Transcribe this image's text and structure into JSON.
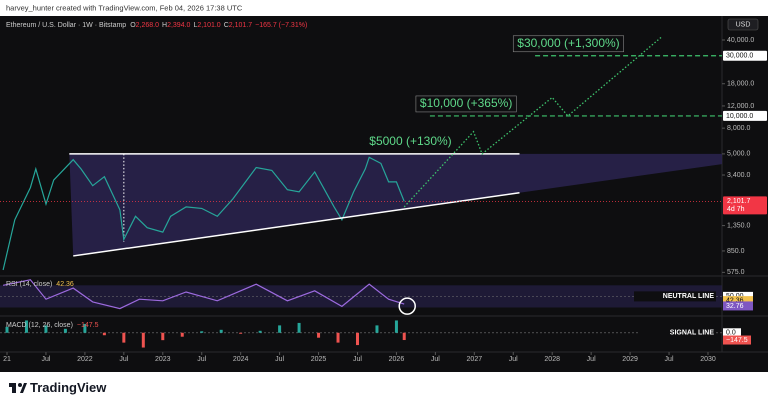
{
  "header": "harvey_hunter created with TradingView.com, Feb 04, 2026 17:38 UTC",
  "footer": "TradingView",
  "chart_data": [
    {
      "type": "line",
      "title": "Ethereum / U.S. Dollar · 1W · Bitstamp",
      "ohlc": [
        {
          "key": "O",
          "value": "2,268.0"
        },
        {
          "key": "H",
          "value": "2,394.0"
        },
        {
          "key": "L",
          "value": "2,101.0"
        },
        {
          "key": "C",
          "value": "2,101.7"
        }
      ],
      "change": "−165.7 (−7.31%)",
      "currency": "USD",
      "log_scale": true,
      "grid": false,
      "color": "#26a69a",
      "x": [
        2020.95,
        2021.1,
        2021.3,
        2021.37,
        2021.5,
        2021.6,
        2021.85,
        2021.95,
        2022.1,
        2022.25,
        2022.45,
        2022.5,
        2022.65,
        2022.8,
        2023.0,
        2023.1,
        2023.3,
        2023.5,
        2023.7,
        2023.9,
        2024.2,
        2024.4,
        2024.6,
        2024.75,
        2024.95,
        2025.2,
        2025.3,
        2025.45,
        2025.6,
        2025.65,
        2025.8,
        2025.9,
        2026.0,
        2026.1
      ],
      "values": [
        600,
        1500,
        2700,
        3800,
        2000,
        3100,
        4500,
        3800,
        2800,
        3300,
        1800,
        1050,
        1600,
        1300,
        1200,
        1600,
        1900,
        1850,
        1600,
        2200,
        3900,
        3700,
        2600,
        2500,
        3600,
        1900,
        1500,
        2500,
        3800,
        4700,
        4200,
        3000,
        3000,
        2101.7
      ],
      "xlim": [
        2020.91,
        2030.18
      ],
      "xticks": [
        {
          "value": 2021,
          "label": "21"
        },
        {
          "value": 2021.5,
          "label": "Jul"
        },
        2022,
        {
          "value": 2022.5,
          "label": "Jul"
        },
        2023,
        {
          "value": 2023.5,
          "label": "Jul"
        },
        2024,
        {
          "value": 2024.5,
          "label": "Jul"
        },
        2025,
        {
          "value": 2025.5,
          "label": "Jul"
        },
        2026,
        {
          "value": 2026.5,
          "label": "Jul"
        },
        2027,
        {
          "value": 2027.5,
          "label": "Jul"
        },
        2028,
        {
          "value": 2028.5,
          "label": "Jul"
        },
        2029,
        {
          "value": 2029.5,
          "label": "Jul"
        },
        2030
      ],
      "ylim": [
        558,
        62000
      ],
      "yticks": [
        {
          "value": 40000,
          "label": "40,000.0"
        },
        {
          "value": 18000,
          "label": "18,000.0"
        },
        {
          "value": 12000,
          "label": "12,000.0"
        },
        {
          "value": 8000,
          "label": "8,000.0"
        },
        {
          "value": 5000,
          "label": "5,000.0"
        },
        {
          "value": 3400,
          "label": "3,400.0"
        },
        {
          "value": 1350,
          "label": "1,350.0"
        },
        {
          "value": 850,
          "label": "850.0"
        },
        {
          "value": 575,
          "label": "575.0"
        }
      ],
      "last_price": {
        "value": 2101.7,
        "label": "2,101.7",
        "countdown": "4d 7h",
        "color": "#f23645"
      },
      "triangle": {
        "top": {
          "x": [
            2021.8,
            2027.58
          ],
          "values": [
            5000,
            5000
          ]
        },
        "bottom": {
          "x": [
            2021.85,
            2027.58
          ],
          "values": [
            776,
            2460
          ]
        },
        "fill": "#2a2350"
      },
      "projection": {
        "x": [
          2026.1,
          2026.99,
          2027.1,
          2028.0,
          2028.2,
          2029.4
        ],
        "values": [
          1900,
          7500,
          5000,
          14000,
          10000,
          42000
        ],
        "color": "#3ec46d"
      },
      "targets": [
        {
          "value": 5000,
          "label": "$5000 (+130%)",
          "at": 2025.6
        },
        {
          "value": 10000,
          "label": "$10,000 (+365%)",
          "at": 2026.25,
          "start": 2026.43,
          "tick_label": "10,000.0"
        },
        {
          "value": 30000,
          "label": "$30,000 (+1,300%)",
          "at": 2027.5,
          "start": 2027.78,
          "tick_label": "30,000.0"
        }
      ]
    },
    {
      "type": "line",
      "title": "RSI (14, close)",
      "color": "#9c6ade",
      "x": [
        2020.95,
        2021.3,
        2021.5,
        2021.85,
        2022.1,
        2022.45,
        2022.7,
        2023.0,
        2023.3,
        2023.7,
        2024.2,
        2024.6,
        2024.95,
        2025.3,
        2025.65,
        2025.9,
        2026.1
      ],
      "values": [
        70,
        80,
        45,
        65,
        40,
        28,
        45,
        42,
        58,
        42,
        72,
        42,
        60,
        32,
        72,
        45,
        36
      ],
      "ylim": [
        20,
        85
      ],
      "yticks": [
        {
          "value": 50,
          "label": "50.00"
        }
      ],
      "badges": [
        {
          "value": 42.36,
          "label": "42.36",
          "color": "#f2c14e"
        },
        {
          "value": 32.76,
          "label": "32.76",
          "color": "#7e57c2"
        }
      ],
      "line_label": "NEUTRAL LINE"
    },
    {
      "type": "bar",
      "title": "MACD (12, 26, close)",
      "up_color": "#26a69a",
      "down_color": "#ef5350",
      "x": [
        2021.0,
        2021.25,
        2021.5,
        2021.75,
        2022.0,
        2022.25,
        2022.5,
        2022.75,
        2023.0,
        2023.25,
        2023.5,
        2023.75,
        2024.0,
        2024.25,
        2024.5,
        2024.75,
        2025.0,
        2025.25,
        2025.5,
        2025.75,
        2026.0,
        2026.1
      ],
      "values": [
        120,
        250,
        150,
        80,
        180,
        -50,
        -200,
        -300,
        -150,
        -80,
        30,
        60,
        -20,
        40,
        150,
        200,
        -100,
        -200,
        -250,
        150,
        250,
        -147.5
      ],
      "ylim": [
        -350,
        300
      ],
      "yticks": [
        {
          "value": 0,
          "label": "0.0"
        }
      ],
      "badges": [
        {
          "value": -147.5,
          "label": "−147.5",
          "color": "#ef5350"
        }
      ],
      "line_label": "SIGNAL LINE"
    }
  ]
}
